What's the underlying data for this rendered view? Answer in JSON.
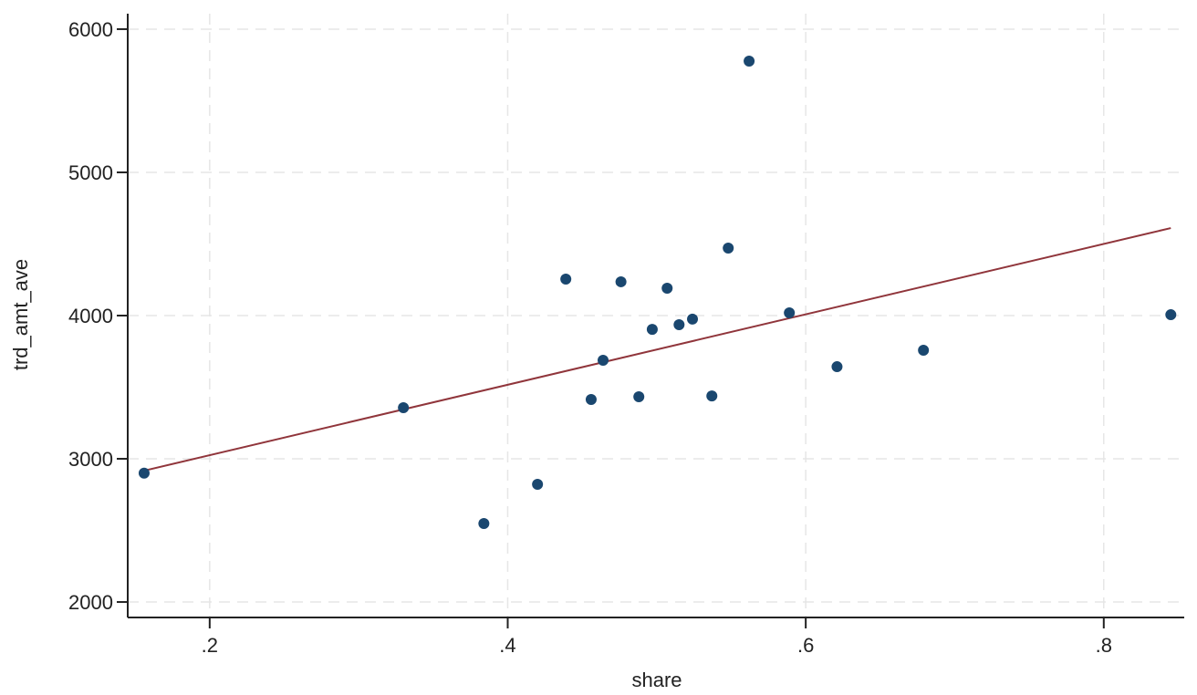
{
  "chart_data": {
    "type": "scatter",
    "title": "",
    "xlabel": "share",
    "ylabel": "trd_amt_ave",
    "xlim": [
      0.145,
      0.854
    ],
    "ylim": [
      1892,
      6108
    ],
    "xticks": [
      0.2,
      0.4,
      0.6,
      0.8
    ],
    "xtick_labels": [
      ".2",
      ".4",
      ".6",
      ".8"
    ],
    "yticks": [
      2000,
      3000,
      4000,
      5000,
      6000
    ],
    "ytick_labels": [
      "2000",
      "3000",
      "4000",
      "5000",
      "6000"
    ],
    "grid": true,
    "legend": "none",
    "colors": {
      "points": "#1a476f",
      "fit_line": "#90353b",
      "grid": "#e6e6e6",
      "axis": "#222222"
    },
    "points": [
      {
        "x": 0.156,
        "y": 2900
      },
      {
        "x": 0.33,
        "y": 3357
      },
      {
        "x": 0.384,
        "y": 2548
      },
      {
        "x": 0.42,
        "y": 2822
      },
      {
        "x": 0.439,
        "y": 4255
      },
      {
        "x": 0.456,
        "y": 3414
      },
      {
        "x": 0.464,
        "y": 3688
      },
      {
        "x": 0.476,
        "y": 4236
      },
      {
        "x": 0.488,
        "y": 3433
      },
      {
        "x": 0.497,
        "y": 3904
      },
      {
        "x": 0.507,
        "y": 4191
      },
      {
        "x": 0.515,
        "y": 3936
      },
      {
        "x": 0.524,
        "y": 3975
      },
      {
        "x": 0.537,
        "y": 3439
      },
      {
        "x": 0.548,
        "y": 4471
      },
      {
        "x": 0.562,
        "y": 5777
      },
      {
        "x": 0.589,
        "y": 4019
      },
      {
        "x": 0.621,
        "y": 3643
      },
      {
        "x": 0.679,
        "y": 3758
      },
      {
        "x": 0.845,
        "y": 4006
      }
    ],
    "fit_line": {
      "type": "linear",
      "x": [
        0.156,
        0.845
      ],
      "y": [
        2917,
        4611
      ]
    }
  }
}
